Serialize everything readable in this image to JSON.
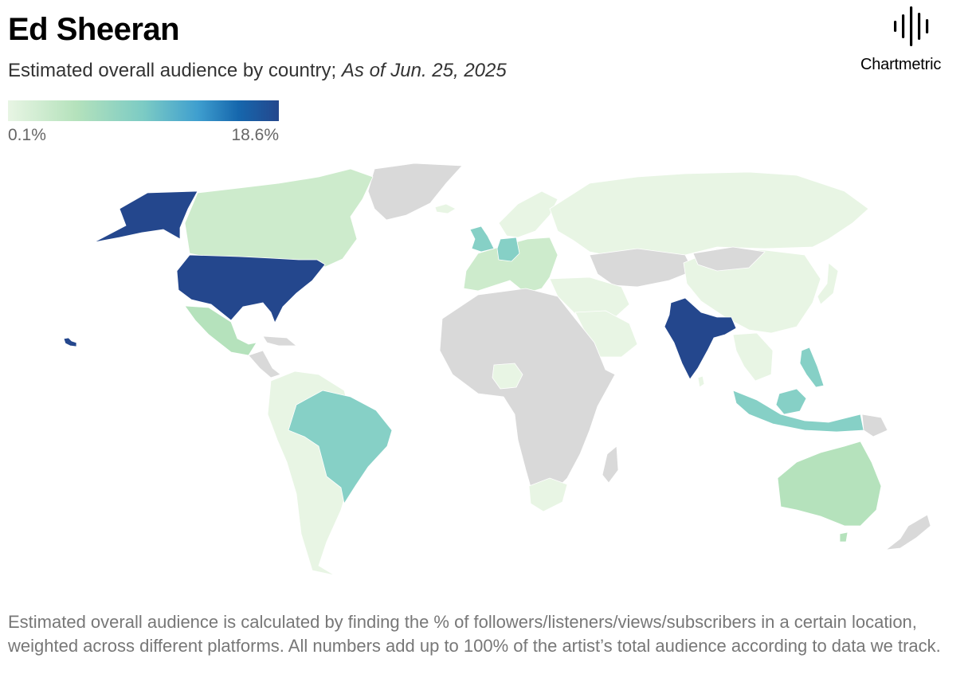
{
  "header": {
    "title": "Ed Sheeran",
    "subtitle": "Estimated overall audience by country;",
    "date": "As of Jun. 25, 2025"
  },
  "brand": {
    "name": "Chartmetric",
    "icon": "sound-wave-icon"
  },
  "legend": {
    "min_label": "0.1%",
    "max_label": "18.6%",
    "colors": [
      "#e8f5e4",
      "#b5e2bc",
      "#7ccbc4",
      "#3f9fcf",
      "#1667ad",
      "#24478d"
    ]
  },
  "map": {
    "no_data_color": "#d9d9d9",
    "shade_levels": {
      "very_low": "#e8f5e4",
      "low": "#cdebcc",
      "medium_low": "#b5e2bc",
      "medium": "#86d0c6",
      "highest": "#24478d"
    },
    "regions": [
      {
        "id": "us",
        "name": "United States",
        "level": "highest"
      },
      {
        "id": "alaska",
        "name": "Alaska",
        "level": "highest"
      },
      {
        "id": "hawaii",
        "name": "Hawaii",
        "level": "highest"
      },
      {
        "id": "india",
        "name": "India",
        "level": "highest"
      },
      {
        "id": "canada",
        "name": "Canada",
        "level": "low"
      },
      {
        "id": "mexico",
        "name": "Mexico",
        "level": "medium_low"
      },
      {
        "id": "brazil",
        "name": "Brazil",
        "level": "medium"
      },
      {
        "id": "uk",
        "name": "United Kingdom",
        "level": "medium"
      },
      {
        "id": "germany",
        "name": "Germany",
        "level": "medium"
      },
      {
        "id": "philippines",
        "name": "Philippines",
        "level": "medium"
      },
      {
        "id": "indonesia",
        "name": "Indonesia",
        "level": "medium"
      },
      {
        "id": "australia",
        "name": "Australia",
        "level": "medium_low"
      },
      {
        "id": "russia",
        "name": "Russia",
        "level": "very_low"
      },
      {
        "id": "china",
        "name": "China",
        "level": "very_low"
      },
      {
        "id": "south-africa",
        "name": "South Africa",
        "level": "very_low"
      },
      {
        "id": "nigeria",
        "name": "Nigeria",
        "level": "very_low"
      },
      {
        "id": "saudi-arabia",
        "name": "Saudi Arabia",
        "level": "very_low"
      },
      {
        "id": "argentina",
        "name": "Argentina",
        "level": "very_low"
      },
      {
        "id": "greenland",
        "name": "Greenland",
        "level": "no_data"
      },
      {
        "id": "africa",
        "name": "Africa",
        "level": "no_data"
      },
      {
        "id": "new-zealand",
        "name": "New Zealand",
        "level": "no_data"
      }
    ]
  },
  "footnote": "Estimated overall audience is calculated by finding the % of followers/listeners/views/subscribers in a certain location, weighted across different platforms. All numbers add up to 100% of the artist’s total audience according to data we track."
}
